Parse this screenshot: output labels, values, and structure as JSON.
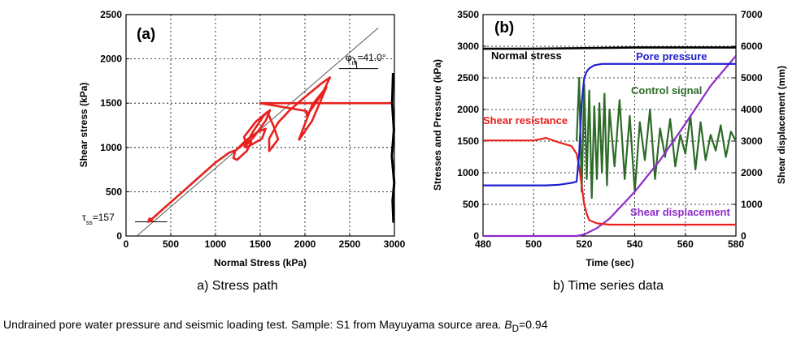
{
  "caption": {
    "text": "Undrained pore water pressure and seismic loading test. Sample: S1 from Mayuyama source area.",
    "bd_symbol": "B",
    "bd_sub": "D",
    "bd_value": "=0.94"
  },
  "chart_data": [
    {
      "type": "line",
      "panel_label": "(a)",
      "subtitle": "a) Stress path",
      "xlabel": "Normal Stress (kPa)",
      "ylabel": "Shear stress (kPa)",
      "xlim": [
        0,
        3000
      ],
      "ylim": [
        0,
        2500
      ],
      "xticks": [
        0,
        500,
        1000,
        1500,
        2000,
        2500,
        3000
      ],
      "yticks": [
        0,
        500,
        1000,
        1500,
        2000,
        2500
      ],
      "grid": true,
      "annotations": {
        "phi_symbol": "φ",
        "phi_sub": "m",
        "phi_value": "=41.0°",
        "tau_symbol": "τ",
        "tau_sub": "ss",
        "tau_value": "=157"
      },
      "failure_line": {
        "x": [
          120,
          2820
        ],
        "y": [
          0,
          2350
        ]
      },
      "phi_reference_line": {
        "x": [
          2380,
          2820
        ],
        "y": [
          1890,
          1890
        ]
      },
      "tau_reference_line": {
        "x": [
          100,
          460
        ],
        "y": [
          160,
          160
        ]
      },
      "series": [
        {
          "color": "#e8211d",
          "x": [
            2950,
            2960,
            1500,
            2020,
            2020,
            2050,
            2200,
            2280,
            2180,
            1990,
            1830,
            1700,
            1600,
            1600,
            1700,
            1650,
            1580,
            1450,
            1320,
            1350,
            1520,
            1560,
            1480,
            1340,
            1220,
            1200,
            1240,
            1350,
            1400,
            1320,
            1230,
            1150,
            1000,
            800,
            600,
            420,
            320,
            265,
            250,
            255,
            265,
            280,
            300
          ],
          "y": [
            1510,
            1500,
            1500,
            1410,
            1360,
            1400,
            1620,
            1790,
            1720,
            1560,
            1420,
            1280,
            1100,
            960,
            1090,
            1240,
            1400,
            1290,
            1120,
            1000,
            1100,
            1210,
            1180,
            1080,
            960,
            880,
            860,
            960,
            1060,
            1040,
            970,
            940,
            830,
            650,
            470,
            310,
            220,
            170,
            160,
            185,
            200,
            175,
            160
          ]
        },
        {
          "color": "#e8211d",
          "x": [
            1930,
            2080,
            2240,
            2080,
            1930
          ],
          "y": [
            1080,
            1300,
            1680,
            1480,
            1080
          ]
        },
        {
          "color": "#e8211d",
          "x": [
            1320,
            1420,
            1540,
            1610,
            1560,
            1430,
            1320
          ],
          "y": [
            1000,
            1180,
            1360,
            1420,
            1300,
            1120,
            1000
          ]
        },
        {
          "color": "#000000",
          "x": [
            2985,
            2975,
            2995,
            2972,
            2998,
            2980,
            2990
          ],
          "y": [
            1840,
            1500,
            1200,
            900,
            600,
            400,
            150
          ]
        }
      ]
    },
    {
      "type": "line",
      "panel_label": "(b)",
      "subtitle": "b) Time series data",
      "xlabel": "Time (sec)",
      "ylabel": "Stresses and Pressure (kPa)",
      "y2label": "Shear displacement (mm)",
      "xlim": [
        480,
        580
      ],
      "ylim": [
        0,
        3500
      ],
      "y2lim": [
        0,
        7000
      ],
      "xticks": [
        480,
        500,
        520,
        540,
        560,
        580
      ],
      "yticks": [
        0,
        500,
        1000,
        1500,
        2000,
        2500,
        3000,
        3500
      ],
      "y2ticks": [
        0,
        1000,
        2000,
        3000,
        4000,
        5000,
        6000,
        7000
      ],
      "grid": true,
      "series": [
        {
          "name": "Normal stress",
          "axis": "left",
          "color": "#000000",
          "x": [
            480,
            500,
            520,
            540,
            560,
            580
          ],
          "y": [
            2960,
            2960,
            2970,
            2980,
            2980,
            2980
          ]
        },
        {
          "name": "Pore pressure",
          "axis": "left",
          "color": "#1f1fd1",
          "x": [
            480,
            505,
            510,
            515,
            517,
            518,
            519,
            520,
            521,
            522,
            524,
            527,
            532,
            545,
            580
          ],
          "y": [
            800,
            800,
            810,
            840,
            860,
            1300,
            2100,
            2500,
            2600,
            2650,
            2700,
            2720,
            2720,
            2720,
            2720
          ]
        },
        {
          "name": "Shear resistance",
          "axis": "left",
          "color": "#e8211d",
          "x": [
            480,
            500,
            505,
            510,
            515,
            517,
            518,
            519,
            520,
            521,
            522,
            525,
            530,
            540,
            560,
            580
          ],
          "y": [
            1510,
            1510,
            1550,
            1480,
            1420,
            1300,
            1100,
            800,
            500,
            350,
            250,
            200,
            180,
            180,
            180,
            180
          ]
        },
        {
          "name": "Control signal",
          "axis": "left",
          "color": "#2d6b27",
          "x": [
            517,
            518,
            519,
            520,
            521,
            522,
            523,
            524,
            525,
            526,
            527,
            528,
            529,
            530,
            532,
            534,
            536,
            538,
            540,
            542,
            544,
            546,
            548,
            550,
            552,
            554,
            556,
            558,
            560,
            562,
            564,
            566,
            568,
            570,
            572,
            574,
            576,
            578,
            580
          ],
          "y": [
            1500,
            2500,
            700,
            2400,
            900,
            2300,
            600,
            2050,
            900,
            2100,
            1000,
            2250,
            800,
            2000,
            1100,
            2150,
            900,
            1900,
            700,
            1800,
            1200,
            2000,
            900,
            1700,
            1250,
            1850,
            1100,
            1600,
            1300,
            1900,
            1050,
            1800,
            1200,
            1600,
            1350,
            1750,
            1250,
            1650,
            1500
          ]
        },
        {
          "name": "Shear displacement",
          "axis": "right",
          "color": "#8e2bc9",
          "x": [
            480,
            517,
            520,
            525,
            530,
            540,
            550,
            560,
            570,
            580
          ],
          "y": [
            0,
            0,
            50,
            250,
            550,
            1400,
            2400,
            3550,
            4750,
            5700
          ]
        }
      ]
    }
  ]
}
